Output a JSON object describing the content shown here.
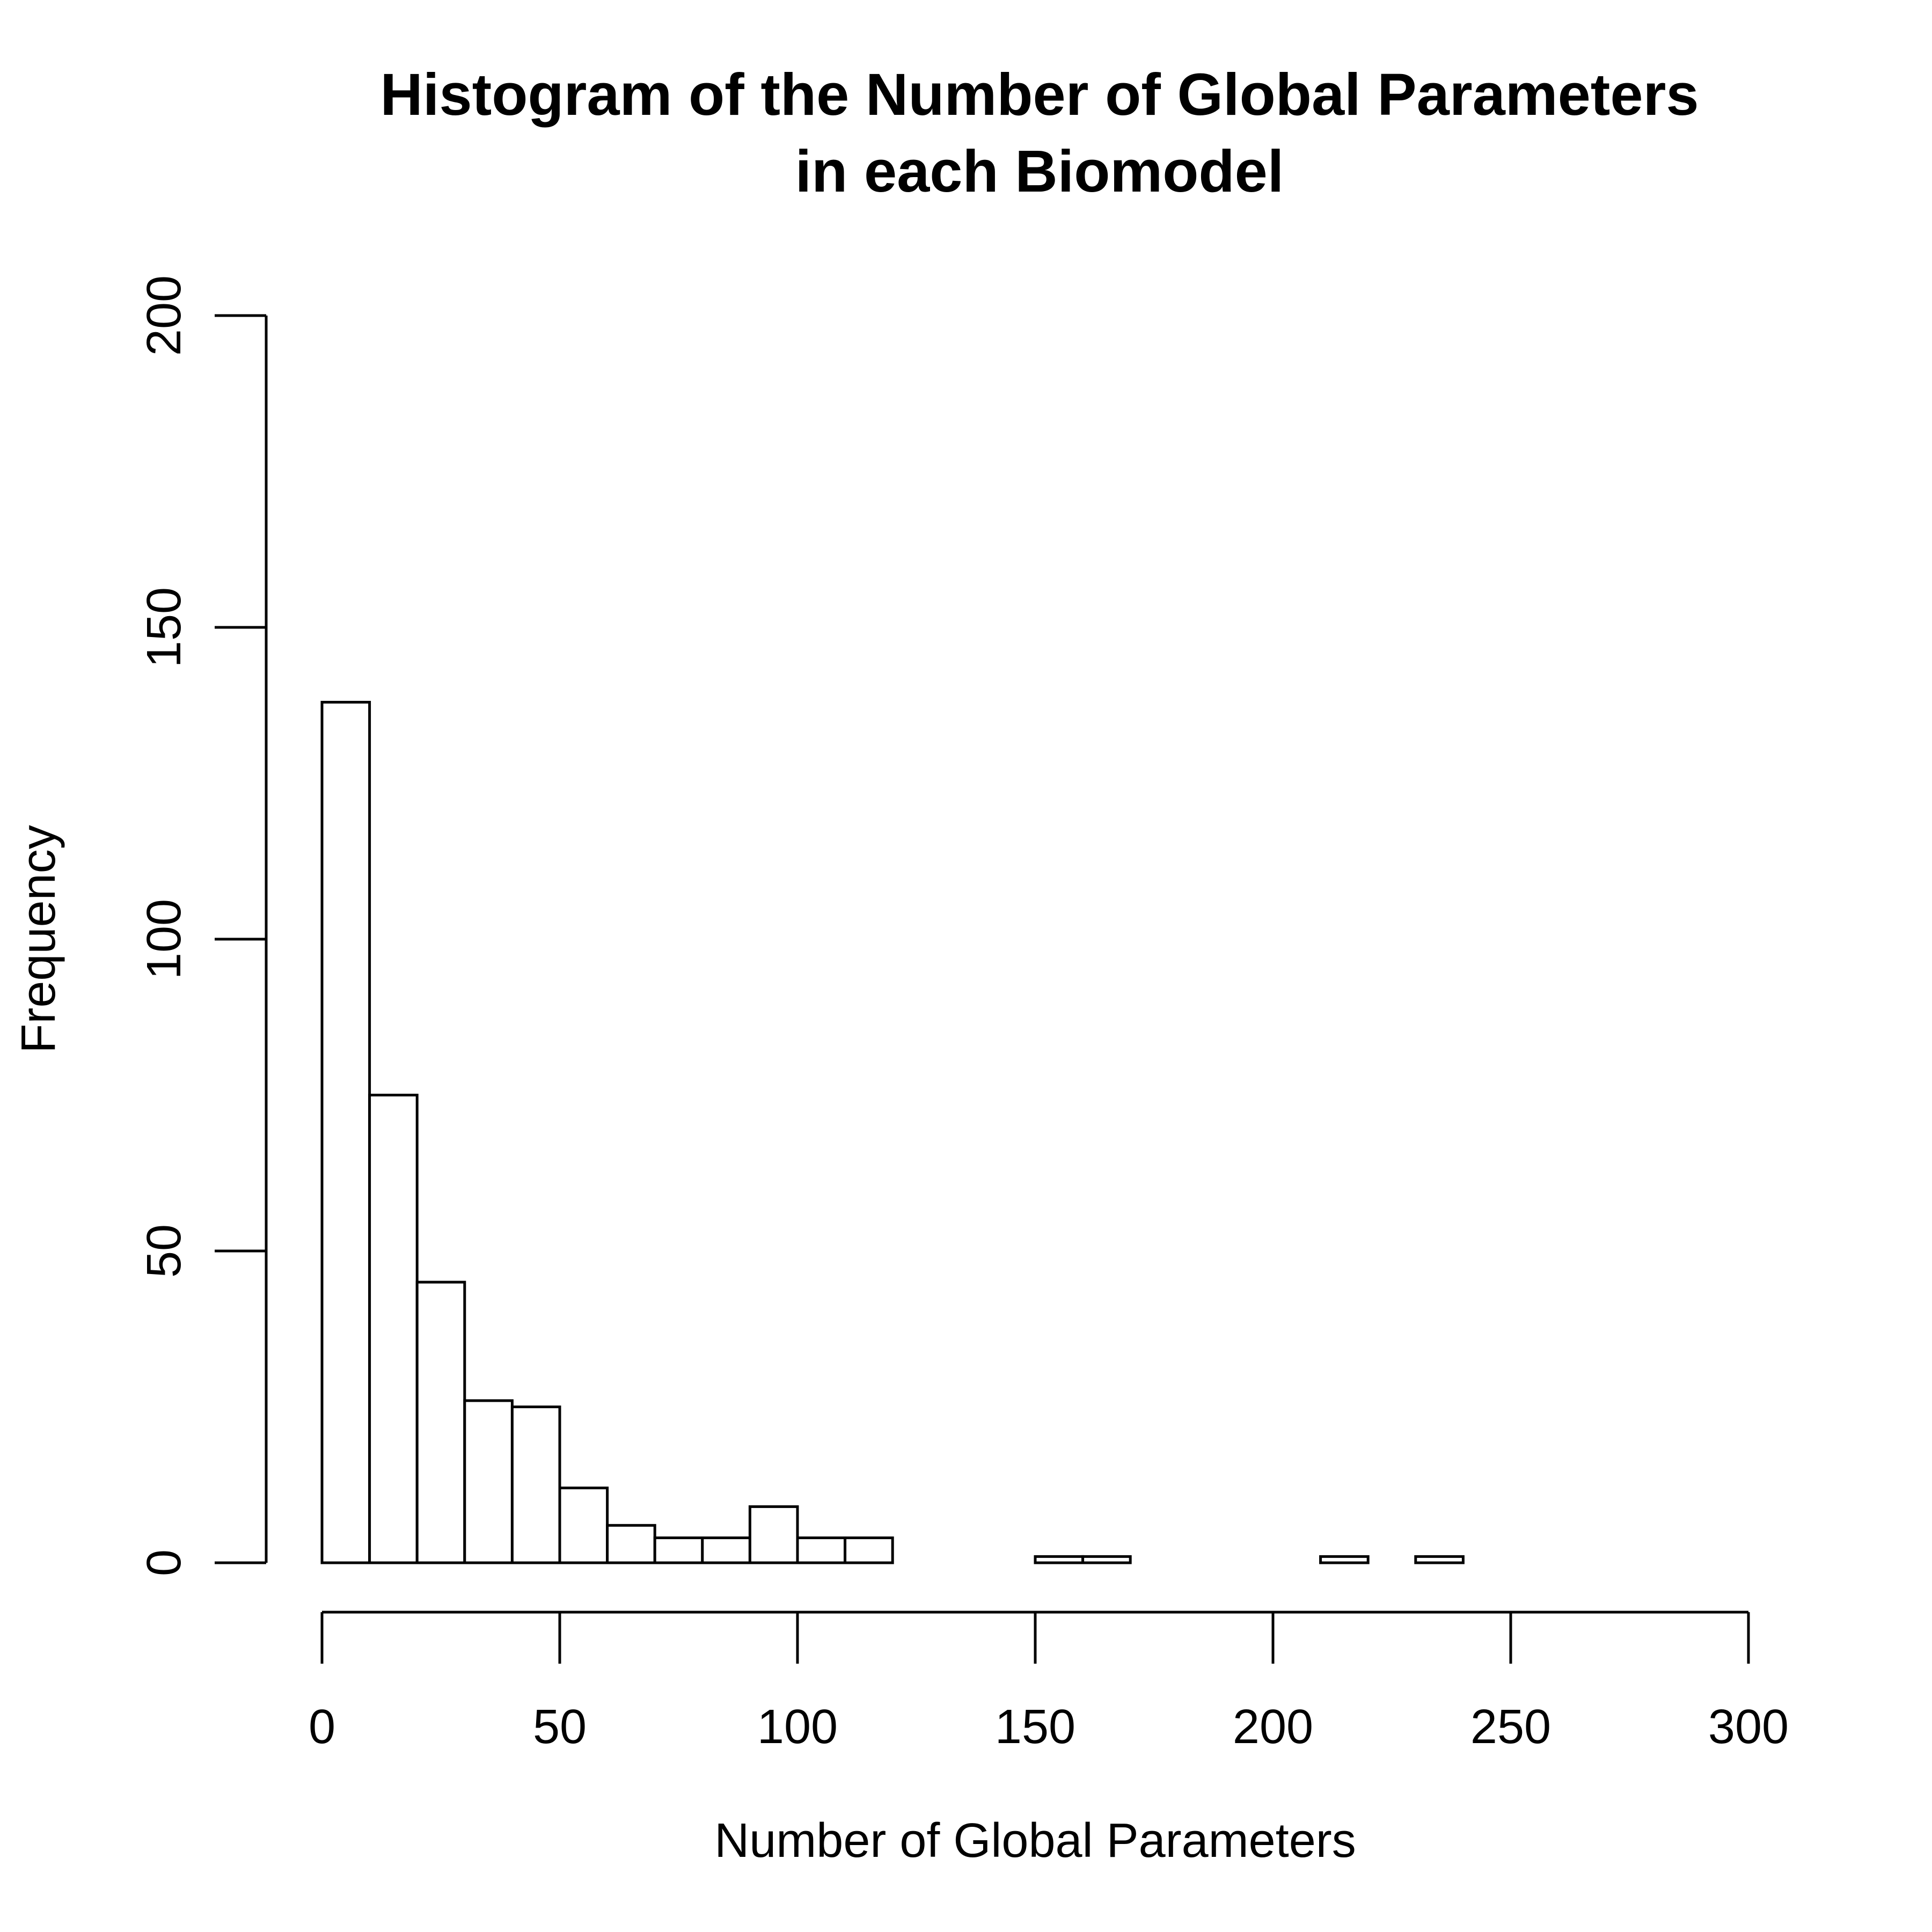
{
  "chart_data": {
    "type": "bar",
    "title": [
      "Histogram of the Number of Global Parameters",
      "in each Biomodel"
    ],
    "xlabel": "Number of Global Parameters",
    "ylabel": "Frequency",
    "xlim": [
      0,
      300
    ],
    "ylim": [
      0,
      200
    ],
    "x_ticks": [
      0,
      50,
      100,
      150,
      200,
      250,
      300
    ],
    "y_ticks": [
      0,
      50,
      100,
      150,
      200
    ],
    "bin_width": 10,
    "bins": [
      {
        "start": 0,
        "end": 10,
        "count": 138
      },
      {
        "start": 10,
        "end": 20,
        "count": 75
      },
      {
        "start": 20,
        "end": 30,
        "count": 45
      },
      {
        "start": 30,
        "end": 40,
        "count": 26
      },
      {
        "start": 40,
        "end": 50,
        "count": 25
      },
      {
        "start": 50,
        "end": 60,
        "count": 12
      },
      {
        "start": 60,
        "end": 70,
        "count": 6
      },
      {
        "start": 70,
        "end": 80,
        "count": 4
      },
      {
        "start": 80,
        "end": 90,
        "count": 4
      },
      {
        "start": 90,
        "end": 100,
        "count": 9
      },
      {
        "start": 100,
        "end": 110,
        "count": 4
      },
      {
        "start": 110,
        "end": 120,
        "count": 4
      },
      {
        "start": 120,
        "end": 130,
        "count": 0
      },
      {
        "start": 130,
        "end": 140,
        "count": 0
      },
      {
        "start": 140,
        "end": 150,
        "count": 0
      },
      {
        "start": 150,
        "end": 160,
        "count": 1
      },
      {
        "start": 160,
        "end": 170,
        "count": 1
      },
      {
        "start": 170,
        "end": 180,
        "count": 0
      },
      {
        "start": 180,
        "end": 190,
        "count": 0
      },
      {
        "start": 190,
        "end": 200,
        "count": 0
      },
      {
        "start": 200,
        "end": 210,
        "count": 0
      },
      {
        "start": 210,
        "end": 220,
        "count": 1
      },
      {
        "start": 220,
        "end": 230,
        "count": 0
      },
      {
        "start": 230,
        "end": 240,
        "count": 1
      }
    ],
    "grid": false,
    "legend": "none"
  }
}
